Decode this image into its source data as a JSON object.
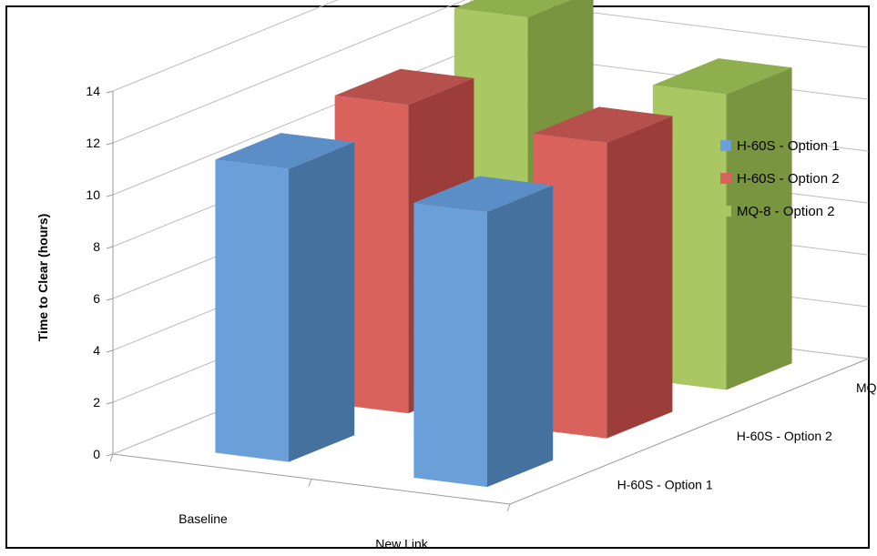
{
  "chart_data": {
    "type": "bar",
    "variant": "3d-column",
    "categories": [
      "Baseline",
      "New Link"
    ],
    "depth_categories": [
      "H-60S - Option 1",
      "H-60S - Option 2",
      "MQ-8 - Option 2"
    ],
    "series": [
      {
        "name": "H-60S - Option 1",
        "values": [
          11.3,
          10.6
        ],
        "color": "#6a9fd8",
        "side": "#45719e",
        "top": "#5b8ec7"
      },
      {
        "name": "H-60S - Option 2",
        "values": [
          11.9,
          11.4
        ],
        "color": "#d9625c",
        "side": "#9c3d3a",
        "top": "#b5504c"
      },
      {
        "name": "MQ-8 - Option 2",
        "values": [
          13.4,
          11.4
        ],
        "color": "#a9c762",
        "side": "#7a953f",
        "top": "#8fae4d"
      }
    ],
    "ylabel": "Time to Clear (hours)",
    "ylim": [
      0,
      14
    ],
    "yticks": [
      "0",
      "2",
      "4",
      "6",
      "8",
      "10",
      "12",
      "14"
    ],
    "grid": true,
    "legend_position": "right"
  }
}
